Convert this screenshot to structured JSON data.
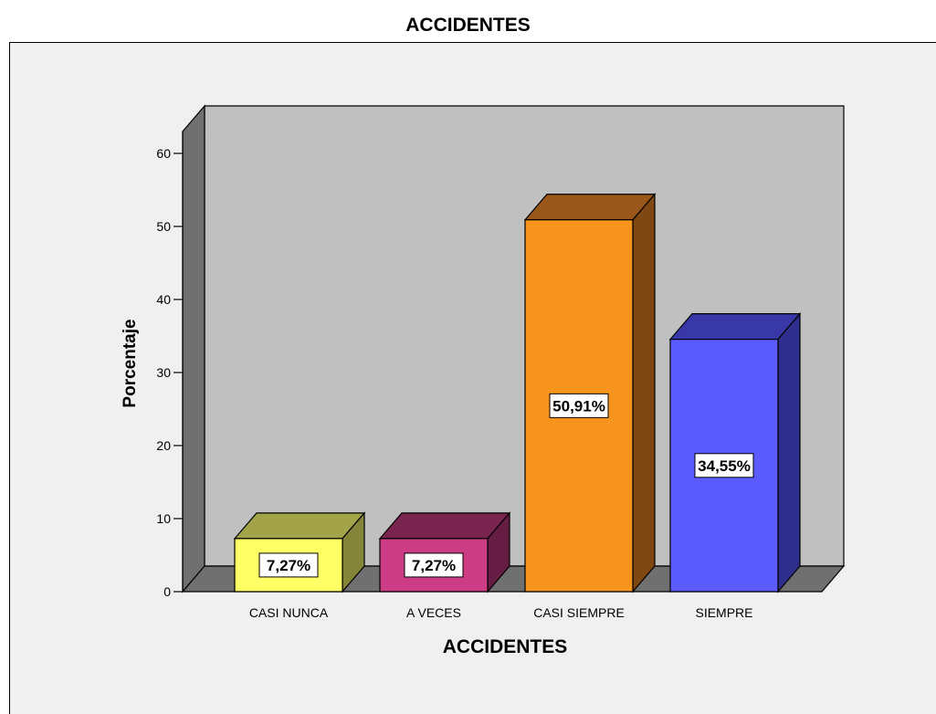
{
  "chart_data": {
    "type": "bar",
    "title": "ACCIDENTES",
    "xlabel": "ACCIDENTES",
    "ylabel": "Porcentaje",
    "categories": [
      "CASI NUNCA",
      "A VECES",
      "CASI SIEMPRE",
      "SIEMPRE"
    ],
    "values": [
      7.27,
      7.27,
      50.91,
      34.55
    ],
    "data_labels": [
      "7,27%",
      "7,27%",
      "50,91%",
      "34,55%"
    ],
    "ylim": [
      0,
      60
    ],
    "yticks": [
      "0",
      "10",
      "20",
      "30",
      "40",
      "50",
      "60"
    ],
    "grid": false,
    "legend": "none",
    "colors": {
      "bars_front": [
        "#ffff66",
        "#cc3d85",
        "#f7941d",
        "#5b5bff"
      ],
      "bars_top": [
        "#a3a34a",
        "#7a2450",
        "#99571a",
        "#3838a8"
      ],
      "bars_side": [
        "#858539",
        "#661d43",
        "#7f4712",
        "#2e2e8c"
      ],
      "back_wall": "#c0c0c0",
      "side_wall": "#707070",
      "floor": "#707070",
      "background": "#f0f0f0"
    }
  }
}
